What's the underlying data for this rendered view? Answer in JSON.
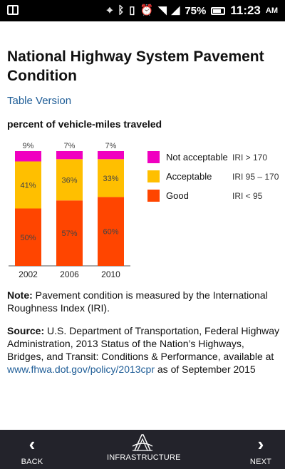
{
  "status_bar": {
    "battery": "75%",
    "time": "11:23",
    "ampm": "AM",
    "icons": [
      "app-icon",
      "gps-icon",
      "bluetooth-icon",
      "vibrate-icon",
      "alarm-icon",
      "wifi-icon",
      "signal-icon",
      "battery-icon"
    ]
  },
  "header": {
    "title": "National Highway System Pavement Condition",
    "table_link": "Table Version",
    "subtitle": "percent of vehicle-miles traveled"
  },
  "chart_data": {
    "type": "bar",
    "stacked": true,
    "categories": [
      "2002",
      "2006",
      "2010"
    ],
    "series": [
      {
        "name": "Good",
        "range": "IRI < 95",
        "color": "#ff4500",
        "values": [
          50,
          57,
          60
        ],
        "labels": [
          "50%",
          "57%",
          "60%"
        ]
      },
      {
        "name": "Acceptable",
        "range": "IRI 95 – 170",
        "color": "#ffbf00",
        "values": [
          41,
          36,
          33
        ],
        "labels": [
          "41%",
          "36%",
          "33%"
        ]
      },
      {
        "name": "Not acceptable",
        "range": "IRI > 170",
        "color": "#f000c0",
        "values": [
          9,
          7,
          7
        ],
        "labels": [
          "9%",
          "7%",
          "7%"
        ]
      }
    ],
    "ylim": [
      0,
      100
    ],
    "legend_position": "right"
  },
  "note": {
    "label": "Note:",
    "text": " Pavement condition is measured by the International Roughness Index (IRI)."
  },
  "source": {
    "label": "Source:",
    "text": " U.S. Department of Transportation, Federal Highway Administration, 2013 Status of the Nation’s Highways, Bridges, and Transit: Conditions & Performance, available at ",
    "link": "www.fhwa.dot.gov/policy/2013cpr",
    "suffix": " as of September 2015"
  },
  "bottom_nav": {
    "back": "BACK",
    "center": "INFRASTRUCTURE",
    "next": "NEXT",
    "back_icon": "chevron-left-icon",
    "center_icon": "bridge-logo-icon",
    "next_icon": "chevron-right-icon"
  }
}
